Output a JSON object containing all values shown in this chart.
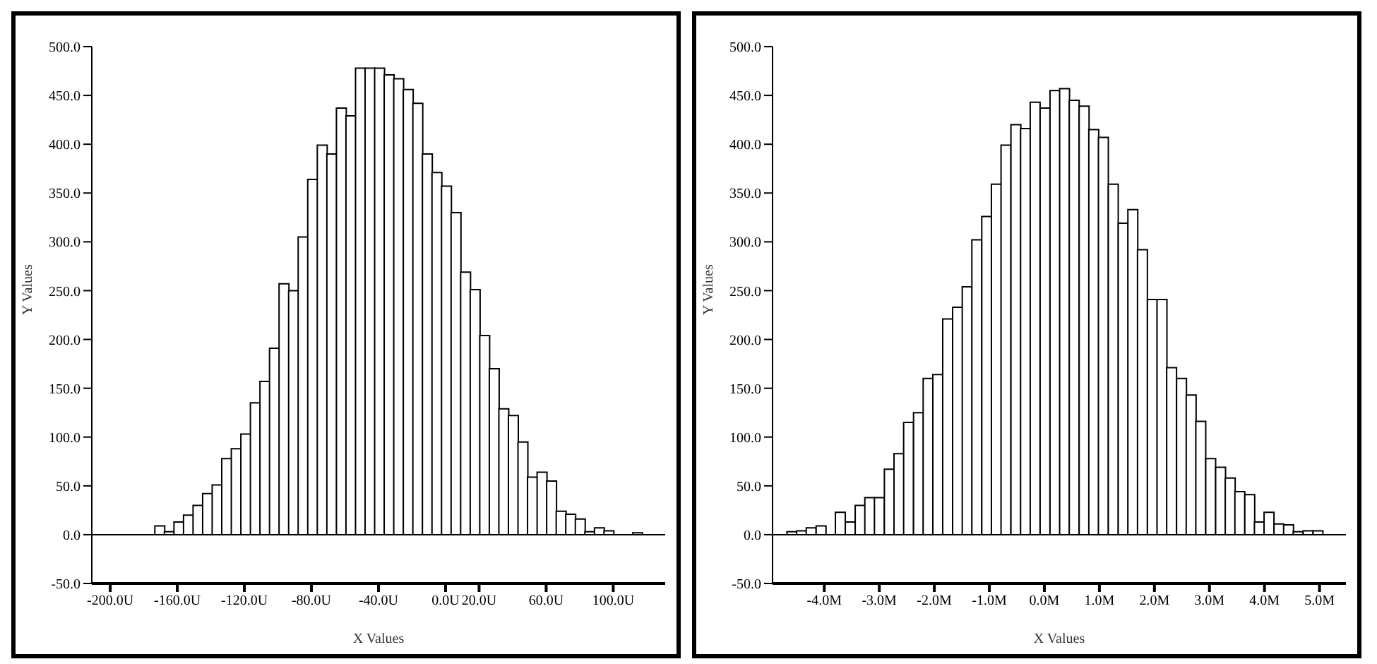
{
  "chart_data": [
    {
      "type": "histogram",
      "xlabel": "X Values",
      "ylabel": "Y Values",
      "color": "#ffffff",
      "bins": [
        -173.4,
        -167.7,
        -162.0,
        -156.3,
        -150.6,
        -144.9,
        -139.2,
        -133.5,
        -127.8,
        -122.1,
        -116.4,
        -110.7,
        -105.0,
        -99.3,
        -93.6,
        -87.9,
        -82.2,
        -76.5,
        -70.8,
        -65.1,
        -59.4,
        -53.7,
        -48.0,
        -42.3,
        -36.6,
        -30.9,
        -25.2,
        -19.5,
        -13.8,
        -8.1,
        -2.4,
        3.3,
        9.0,
        14.7,
        20.4,
        26.1,
        31.8,
        37.5,
        43.2,
        48.9,
        54.6,
        60.3,
        66.0,
        71.7,
        77.4,
        83.1,
        88.8,
        94.5,
        100.2,
        105.9,
        111.6,
        117.3
      ],
      "values": [
        9,
        3,
        13,
        20,
        30,
        42,
        51,
        78,
        88,
        103,
        135,
        157,
        191,
        257,
        250,
        305,
        364,
        399,
        390,
        437,
        429,
        478,
        478,
        478,
        471,
        467,
        456,
        442,
        390,
        371,
        357,
        330,
        269,
        251,
        204,
        170,
        129,
        122,
        95,
        59,
        64,
        55,
        24,
        21,
        16,
        3,
        7,
        4,
        0,
        0,
        2
      ],
      "xlim": [
        -211,
        131
      ],
      "xticks": [
        {
          "value": -200,
          "label": "-200.0U"
        },
        {
          "value": -160,
          "label": "-160.0U"
        },
        {
          "value": -120,
          "label": "-120.0U"
        },
        {
          "value": -80,
          "label": "-80.0U"
        },
        {
          "value": -40,
          "label": "-40.0U"
        },
        {
          "value": 0,
          "label": "0.0U"
        },
        {
          "value": 20,
          "label": "20.0U"
        },
        {
          "value": 60,
          "label": "60.0U"
        },
        {
          "value": 100,
          "label": "100.0U"
        }
      ],
      "ylim": [
        -50,
        500
      ],
      "yticks": [
        {
          "value": -50,
          "label": "-50.0"
        },
        {
          "value": 0,
          "label": "0.0"
        },
        {
          "value": 50,
          "label": "50.0"
        },
        {
          "value": 100,
          "label": "100.0"
        },
        {
          "value": 150,
          "label": "150.0"
        },
        {
          "value": 200,
          "label": "200.0"
        },
        {
          "value": 250,
          "label": "250.0"
        },
        {
          "value": 300,
          "label": "300.0"
        },
        {
          "value": 350,
          "label": "350.0"
        },
        {
          "value": 400,
          "label": "400.0"
        },
        {
          "value": 450,
          "label": "450.0"
        },
        {
          "value": 500,
          "label": "500.0"
        }
      ],
      "ref_lines": [
        {
          "axis": "y",
          "value": 0,
          "color": "#000000"
        }
      ]
    },
    {
      "type": "histogram",
      "xlabel": "X Values",
      "ylabel": "Y Values",
      "color": "#ffffff",
      "bins": [
        -4.68,
        -4.5,
        -4.33,
        -4.15,
        -3.97,
        -3.8,
        -3.62,
        -3.44,
        -3.26,
        -3.09,
        -2.91,
        -2.73,
        -2.56,
        -2.38,
        -2.2,
        -2.03,
        -1.85,
        -1.67,
        -1.49,
        -1.32,
        -1.14,
        -0.96,
        -0.79,
        -0.61,
        -0.43,
        -0.26,
        -0.08,
        0.1,
        0.28,
        0.45,
        0.63,
        0.81,
        0.98,
        1.16,
        1.34,
        1.52,
        1.69,
        1.87,
        2.05,
        2.22,
        2.4,
        2.58,
        2.75,
        2.93,
        3.11,
        3.29,
        3.46,
        3.64,
        3.82,
        3.99,
        4.17,
        4.35,
        4.52,
        4.7,
        4.88,
        5.06
      ],
      "values": [
        3,
        4,
        7,
        9,
        0,
        23,
        13,
        30,
        38,
        38,
        67,
        83,
        115,
        125,
        160,
        164,
        221,
        233,
        254,
        302,
        326,
        359,
        399,
        420,
        416,
        443,
        437,
        455,
        457,
        445,
        439,
        415,
        407,
        359,
        319,
        333,
        292,
        241,
        241,
        171,
        160,
        143,
        116,
        78,
        69,
        58,
        44,
        41,
        13,
        23,
        11,
        10,
        3,
        4,
        4
      ],
      "xlim": [
        -4.94,
        5.48
      ],
      "xticks": [
        {
          "value": -4,
          "label": "-4.0M"
        },
        {
          "value": -3,
          "label": "-3.0M"
        },
        {
          "value": -2,
          "label": "-2.0M"
        },
        {
          "value": -1,
          "label": "-1.0M"
        },
        {
          "value": 0,
          "label": "0.0M"
        },
        {
          "value": 1,
          "label": "1.0M"
        },
        {
          "value": 2,
          "label": "2.0M"
        },
        {
          "value": 3,
          "label": "3.0M"
        },
        {
          "value": 4,
          "label": "4.0M"
        },
        {
          "value": 5,
          "label": "5.0M"
        }
      ],
      "ylim": [
        -50,
        500
      ],
      "yticks": [
        {
          "value": -50,
          "label": "-50.0"
        },
        {
          "value": 0,
          "label": "0.0"
        },
        {
          "value": 50,
          "label": "50.0"
        },
        {
          "value": 100,
          "label": "100.0"
        },
        {
          "value": 150,
          "label": "150.0"
        },
        {
          "value": 200,
          "label": "200.0"
        },
        {
          "value": 250,
          "label": "250.0"
        },
        {
          "value": 300,
          "label": "300.0"
        },
        {
          "value": 350,
          "label": "350.0"
        },
        {
          "value": 400,
          "label": "400.0"
        },
        {
          "value": 450,
          "label": "450.0"
        },
        {
          "value": 500,
          "label": "500.0"
        }
      ],
      "ref_lines": [
        {
          "axis": "y",
          "value": 0,
          "color": "#000000"
        }
      ]
    }
  ]
}
